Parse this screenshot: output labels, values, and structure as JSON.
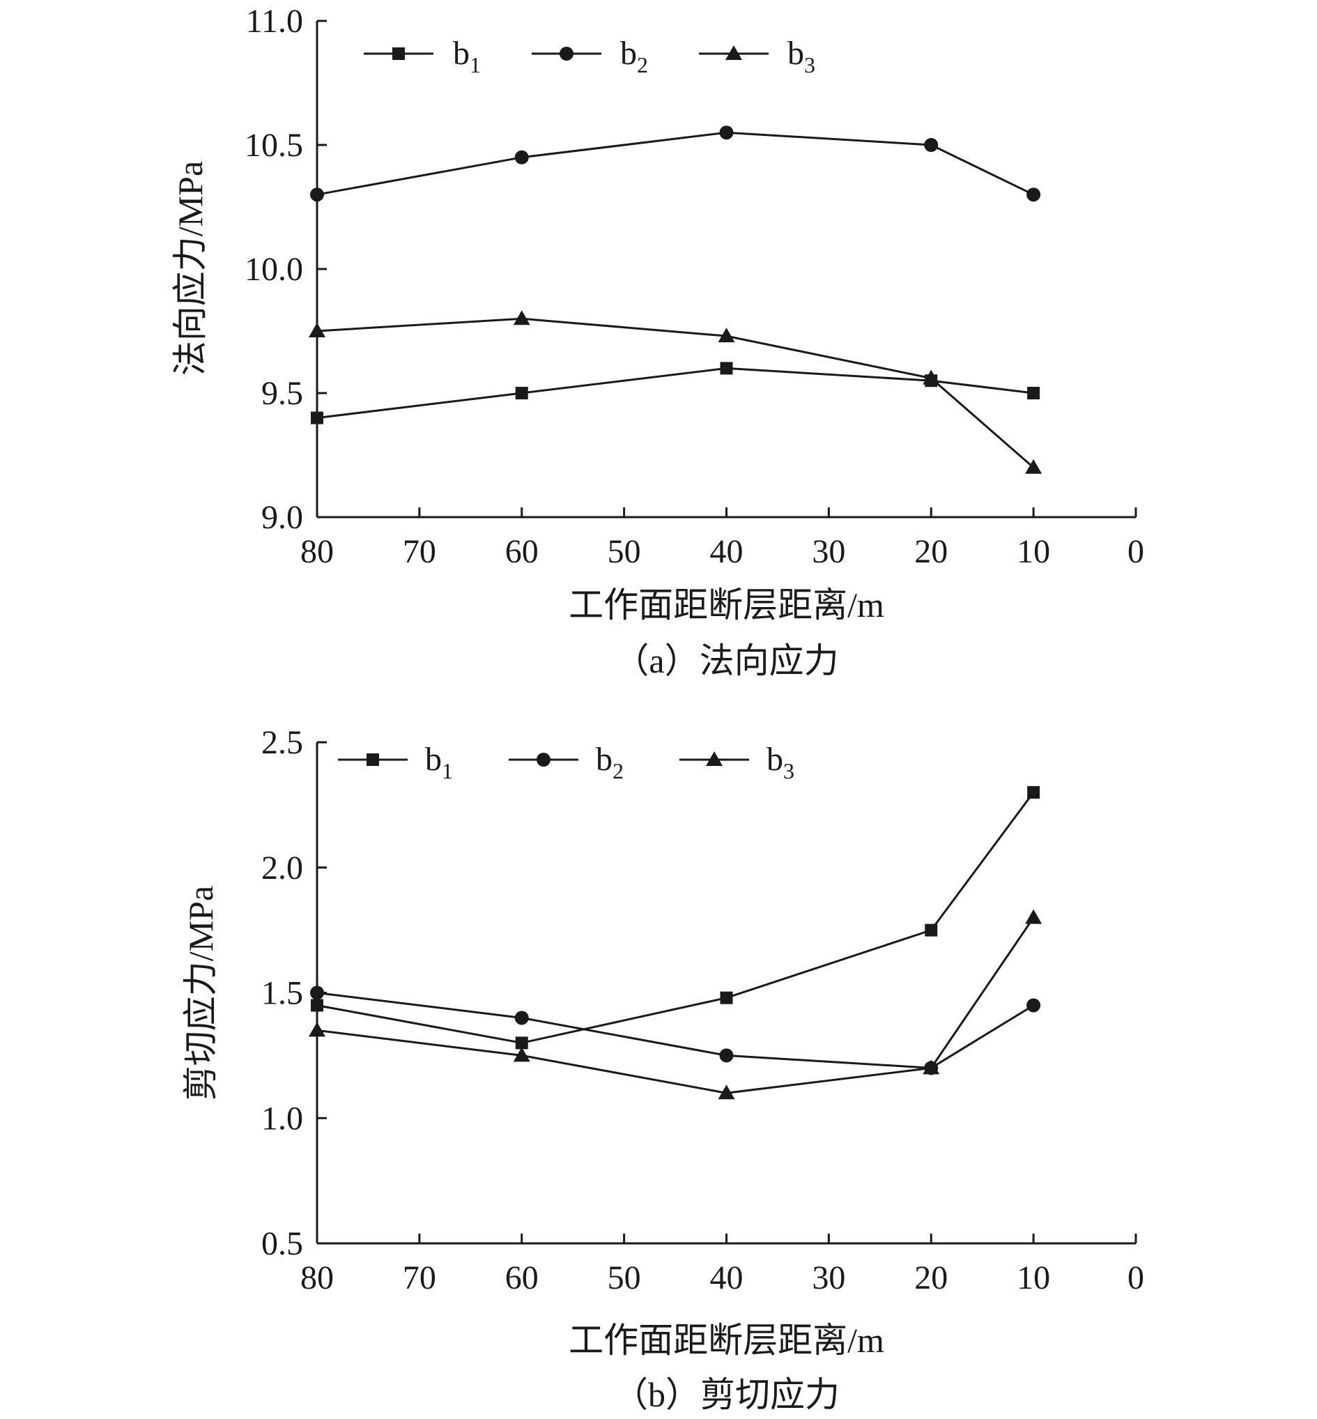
{
  "chart_data": [
    {
      "type": "line",
      "caption": "（a）法向应力",
      "xlabel": "工作面距断层距离/m",
      "ylabel": "法向应力/MPa",
      "xlim": [
        80,
        0
      ],
      "ylim": [
        9.0,
        11.0
      ],
      "x_ticks": [
        "80",
        "70",
        "60",
        "50",
        "40",
        "30",
        "20",
        "10",
        "0"
      ],
      "y_ticks": [
        "11.0",
        "10.5",
        "10.0",
        "9.5",
        "9.0"
      ],
      "x": [
        80,
        60,
        40,
        20,
        10
      ],
      "series": [
        {
          "name": "b1",
          "label_base": "b",
          "label_sub": "1",
          "marker": "square",
          "values": [
            9.4,
            9.5,
            9.6,
            9.55,
            9.5
          ]
        },
        {
          "name": "b2",
          "label_base": "b",
          "label_sub": "2",
          "marker": "circle",
          "values": [
            10.3,
            10.45,
            10.55,
            10.5,
            10.3
          ]
        },
        {
          "name": "b3",
          "label_base": "b",
          "label_sub": "3",
          "marker": "triangle",
          "values": [
            9.75,
            9.8,
            9.73,
            9.56,
            9.2
          ]
        }
      ],
      "legend_position": "top-left",
      "grid": false
    },
    {
      "type": "line",
      "caption": "（b）剪切应力",
      "xlabel": "工作面距断层距离/m",
      "ylabel": "剪切应力/MPa",
      "xlim": [
        80,
        0
      ],
      "ylim": [
        0.5,
        2.5
      ],
      "x_ticks": [
        "80",
        "70",
        "60",
        "50",
        "40",
        "30",
        "20",
        "10",
        "0"
      ],
      "y_ticks": [
        "2.5",
        "2.0",
        "1.5",
        "1.0",
        "0.5"
      ],
      "x": [
        80,
        60,
        40,
        20,
        10
      ],
      "series": [
        {
          "name": "b1",
          "label_base": "b",
          "label_sub": "1",
          "marker": "square",
          "values": [
            1.45,
            1.3,
            1.48,
            1.75,
            2.3
          ]
        },
        {
          "name": "b2",
          "label_base": "b",
          "label_sub": "2",
          "marker": "circle",
          "values": [
            1.5,
            1.4,
            1.25,
            1.2,
            1.45
          ]
        },
        {
          "name": "b3",
          "label_base": "b",
          "label_sub": "3",
          "marker": "triangle",
          "values": [
            1.35,
            1.25,
            1.1,
            1.2,
            1.8
          ]
        }
      ],
      "legend_position": "top-left",
      "grid": false
    }
  ]
}
